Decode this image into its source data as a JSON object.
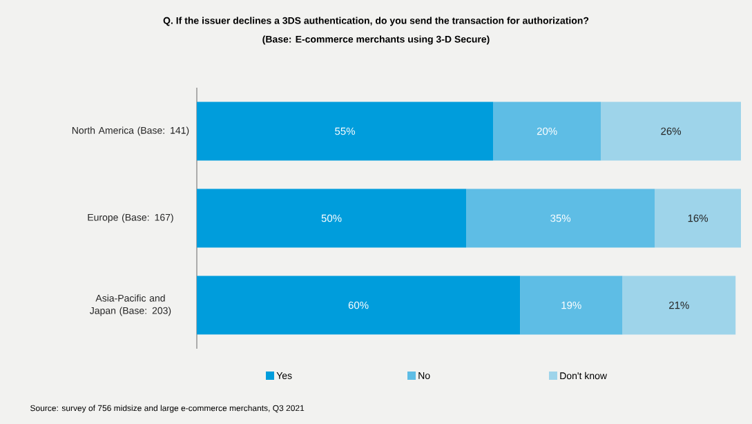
{
  "chart_data": {
    "type": "bar",
    "orientation": "horizontal",
    "stacked": true,
    "title": "Q. If the issuer declines a 3DS authentication, do you send the transaction for authorization?",
    "subtitle": "(Base: E-commerce merchants using 3-D Secure)",
    "categories": [
      "North America (Base: 141)",
      "Europe (Base: 167)",
      "Asia-Pacific and Japan (Base: 203)"
    ],
    "series": [
      {
        "name": "Yes",
        "color": "#009ddc",
        "values": [
          55,
          50,
          60
        ],
        "value_labels": [
          "55%",
          "50%",
          "60%"
        ]
      },
      {
        "name": "No",
        "color": "#5ebde5",
        "values": [
          20,
          35,
          19
        ],
        "value_labels": [
          "20%",
          "35%",
          "19%"
        ]
      },
      {
        "name": "Don't know",
        "color": "#9ed4ea",
        "values": [
          26,
          16,
          21
        ],
        "value_labels": [
          "26%",
          "16%",
          "21%"
        ]
      }
    ],
    "legend": "bottom",
    "annotations": [
      "Source: survey of 756 midsize and large e-commerce merchants, Q3 2021"
    ]
  }
}
